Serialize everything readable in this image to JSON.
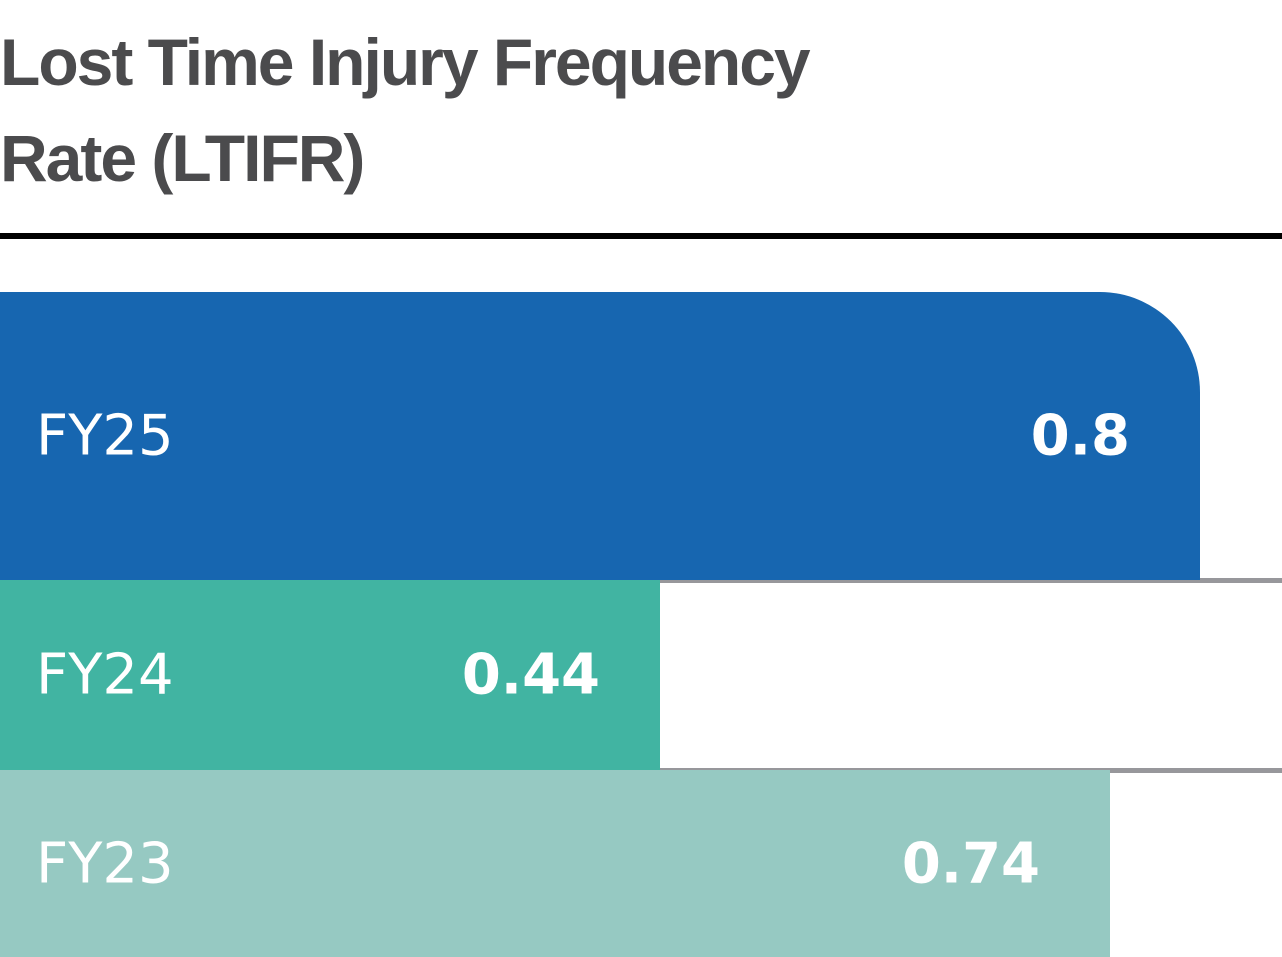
{
  "chart_data": {
    "type": "bar",
    "orientation": "horizontal",
    "title": "Lost Time Injury Frequency Rate (LTIFR)",
    "categories": [
      "FY25",
      "FY24",
      "FY23"
    ],
    "values": [
      0.8,
      0.44,
      0.74
    ],
    "value_labels": [
      "0.8",
      "0.44",
      "0.74"
    ],
    "colors": [
      "#1766b0",
      "#41b4a2",
      "#96c9c2"
    ],
    "xlim": [
      0,
      0.855
    ],
    "grid": false,
    "legend": "none"
  }
}
